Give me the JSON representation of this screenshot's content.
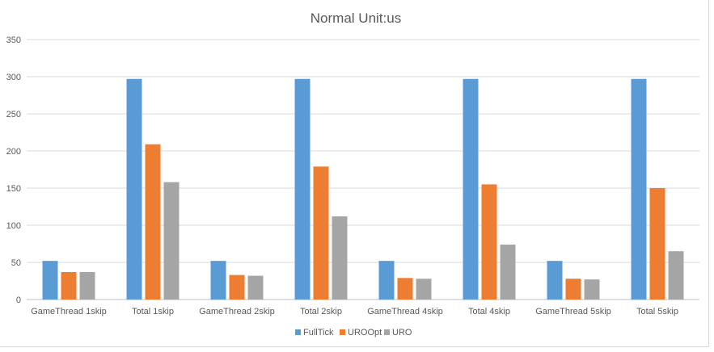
{
  "chart_data": {
    "type": "bar",
    "title": "Normal Unit:us",
    "xlabel": "",
    "ylabel": "",
    "ylim": [
      0,
      350
    ],
    "yticks": [
      0,
      50,
      100,
      150,
      200,
      250,
      300,
      350
    ],
    "grid": true,
    "legend_position": "bottom",
    "categories": [
      "GameThread 1skip",
      "Total 1skip",
      "GameThread 2skip",
      "Total 2skip",
      "GameThread 4skip",
      "Total 4skip",
      "GameThread 5skip",
      "Total 5skip"
    ],
    "series": [
      {
        "name": "FullTick",
        "color": "#5B9BD5",
        "values": [
          52,
          297,
          52,
          297,
          52,
          297,
          52,
          297
        ]
      },
      {
        "name": "UROOpt",
        "color": "#ED7D31",
        "values": [
          37,
          209,
          33,
          179,
          29,
          155,
          28,
          150
        ]
      },
      {
        "name": "URO",
        "color": "#A5A5A5",
        "values": [
          37,
          158,
          32,
          112,
          28,
          74,
          27,
          65
        ]
      }
    ]
  }
}
